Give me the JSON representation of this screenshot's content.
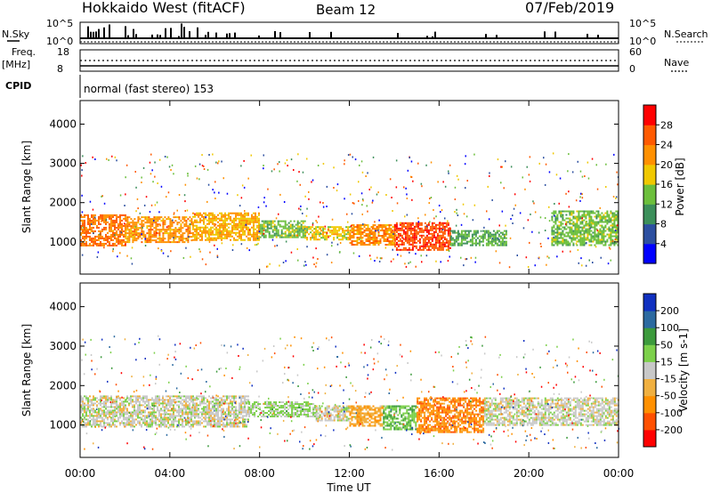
{
  "header": {
    "station": "Hokkaido West (fitACF)",
    "beam": "Beam 12",
    "date": "07/Feb/2019"
  },
  "noise_panel": {
    "left_label": "N.Sky",
    "right_label": "N.Search",
    "ticks_left": [
      "10^5",
      "10^0"
    ],
    "ticks_right": [
      "10^5",
      "10^0"
    ]
  },
  "freq_panel": {
    "left_label_line1": "Freq.",
    "left_label_line2": "[MHz]",
    "right_label": "Nave",
    "ticks_left": [
      "18",
      "8"
    ],
    "ticks_right": [
      "60",
      "0"
    ]
  },
  "cpid": {
    "label": "CPID",
    "value": "normal (fast stereo) 153"
  },
  "axes": {
    "xlabel": "Time UT",
    "xticks": [
      "00:00",
      "04:00",
      "08:00",
      "12:00",
      "16:00",
      "20:00",
      "00:00"
    ],
    "ylabel": "Slant Range [km]",
    "yticks": [
      "4000",
      "3000",
      "2000",
      "1000"
    ]
  },
  "colors": {
    "power": [
      "#0000ff",
      "#2c4fa0",
      "#3c8f5a",
      "#6cbf3c",
      "#f0c800",
      "#ff9000",
      "#ff5a00",
      "#ff0000"
    ],
    "velocity": [
      "#ff0000",
      "#ff5000",
      "#ff9000",
      "#f0b040",
      "#c8c8c8",
      "#7cd04a",
      "#3c9a3c",
      "#2c6aa0",
      "#1030c0"
    ]
  },
  "chart_data": [
    {
      "type": "heatmap",
      "quantity": "Power",
      "xlabel": "Time UT",
      "ylabel": "Slant Range [km]",
      "xlim": [
        0,
        24
      ],
      "ylim": [
        180,
        4600
      ],
      "colorbar": {
        "label": "Power [dB]",
        "ticks": [
          "28",
          "24",
          "20",
          "16",
          "12",
          "8",
          "4"
        ],
        "range": [
          0,
          32
        ]
      },
      "echo_regions": [
        {
          "t_start": 0,
          "t_end": 2,
          "r_low": 900,
          "r_high": 1700,
          "value": 24
        },
        {
          "t_start": 2,
          "t_end": 5,
          "r_low": 1000,
          "r_high": 1650,
          "value": 22
        },
        {
          "t_start": 5,
          "t_end": 8,
          "r_low": 1050,
          "r_high": 1750,
          "value": 20
        },
        {
          "t_start": 8,
          "t_end": 10,
          "r_low": 1100,
          "r_high": 1550,
          "value": 14
        },
        {
          "t_start": 10,
          "t_end": 12,
          "r_low": 1050,
          "r_high": 1400,
          "value": 18
        },
        {
          "t_start": 12,
          "t_end": 14,
          "r_low": 950,
          "r_high": 1450,
          "value": 22
        },
        {
          "t_start": 14,
          "t_end": 16.5,
          "r_low": 800,
          "r_high": 1500,
          "value": 27
        },
        {
          "t_start": 16.5,
          "t_end": 19,
          "r_low": 900,
          "r_high": 1300,
          "value": 12
        },
        {
          "t_start": 21,
          "t_end": 24,
          "r_low": 900,
          "r_high": 1800,
          "value": 14
        }
      ]
    },
    {
      "type": "heatmap",
      "quantity": "Velocity",
      "xlabel": "Time UT",
      "ylabel": "Slant Range [km]",
      "xlim": [
        0,
        24
      ],
      "ylim": [
        180,
        4600
      ],
      "colorbar": {
        "label": "Velocity [m s-1]",
        "ticks": [
          "200",
          "100",
          "50",
          "15",
          "-15",
          "-50",
          "-100",
          "-200"
        ],
        "range": [
          -250,
          250
        ]
      },
      "echo_regions": [
        {
          "t_start": 0,
          "t_end": 7.5,
          "r_low": 950,
          "r_high": 1750,
          "value": 0
        },
        {
          "t_start": 7.5,
          "t_end": 10.5,
          "r_low": 1200,
          "r_high": 1600,
          "value": 40
        },
        {
          "t_start": 10.5,
          "t_end": 12,
          "r_low": 1100,
          "r_high": 1500,
          "value": 0
        },
        {
          "t_start": 12,
          "t_end": 13.5,
          "r_low": 1000,
          "r_high": 1500,
          "value": -70
        },
        {
          "t_start": 13.5,
          "t_end": 15,
          "r_low": 900,
          "r_high": 1500,
          "value": 70
        },
        {
          "t_start": 15,
          "t_end": 18,
          "r_low": 800,
          "r_high": 1700,
          "value": -120
        },
        {
          "t_start": 18,
          "t_end": 24,
          "r_low": 1000,
          "r_high": 1700,
          "value": 0
        }
      ]
    }
  ]
}
